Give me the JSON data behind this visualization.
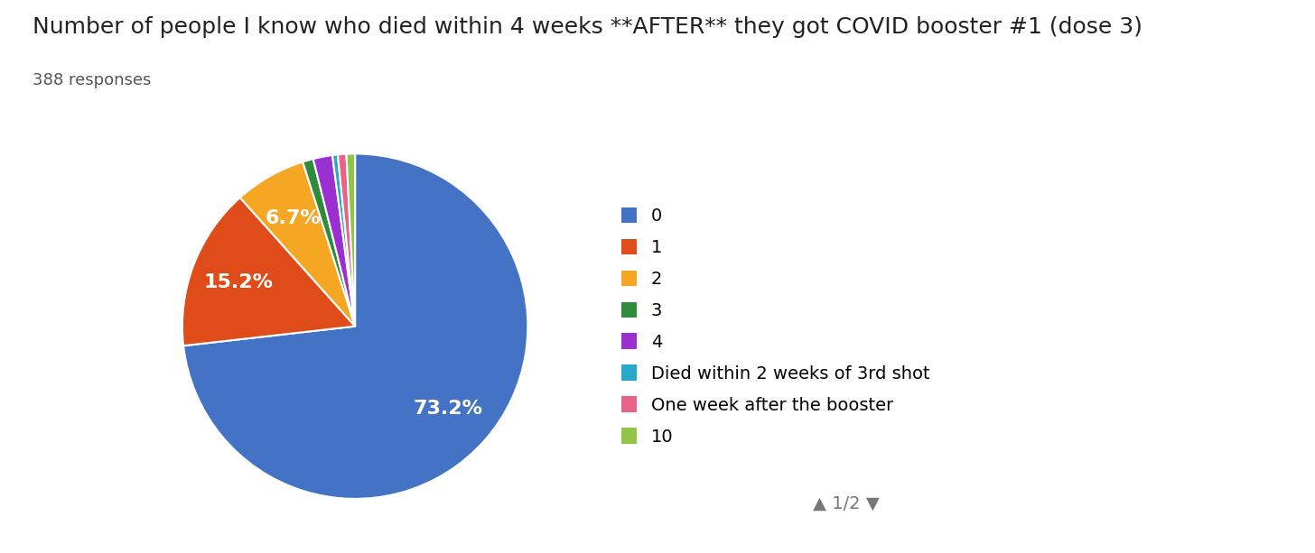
{
  "title": "Number of people I know who died within 4 weeks **AFTER** they got COVID booster #1 (dose 3)",
  "subtitle": "388 responses",
  "labels": [
    "0",
    "1",
    "2",
    "3",
    "4",
    "Died within 2 weeks of 3rd shot",
    "One week after the booster",
    "10"
  ],
  "values": [
    73.2,
    15.2,
    6.7,
    1.0,
    1.8,
    0.5,
    0.8,
    0.8
  ],
  "colors": [
    "#4472C4",
    "#E04B1A",
    "#F5A623",
    "#2E8B3A",
    "#9B30D0",
    "#29A8C9",
    "#E8628A",
    "#91C446"
  ],
  "background_color": "#ffffff",
  "title_fontsize": 18,
  "subtitle_fontsize": 13,
  "legend_fontsize": 14,
  "pct_threshold": 5.0,
  "page_indicator": "▲ 1/2 ▼"
}
